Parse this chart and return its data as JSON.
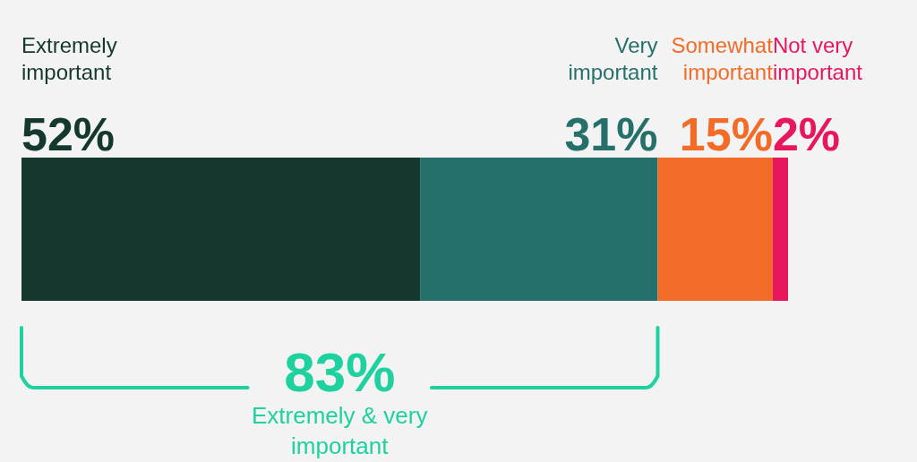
{
  "chart_data": {
    "type": "bar",
    "orientation": "horizontal",
    "stacked": true,
    "categories": [
      null
    ],
    "series": [
      {
        "name": "Extremely important",
        "color": "#14382d",
        "values": [
          52
        ],
        "value_labels": [
          "52%"
        ]
      },
      {
        "name": "Very important",
        "color": "#26706c",
        "values": [
          31
        ],
        "value_labels": [
          "31%"
        ]
      },
      {
        "name": "Somewhat important",
        "color": "#f26c28",
        "values": [
          15
        ],
        "value_labels": [
          "15%"
        ]
      },
      {
        "name": "Not very important",
        "color": "#e8175d",
        "values": [
          2
        ],
        "value_labels": [
          "2%"
        ]
      }
    ],
    "annotations": [
      "83%",
      "Extremely & very important"
    ],
    "tick_labels": false
  }
}
